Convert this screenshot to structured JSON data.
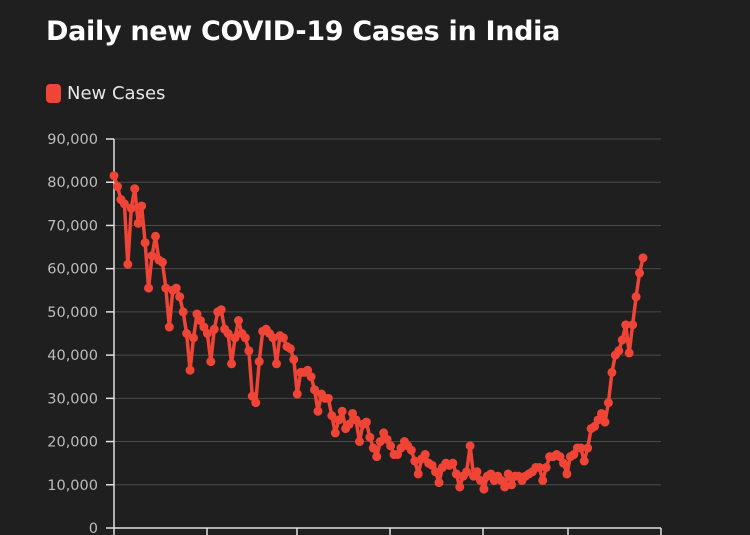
{
  "chart_data": {
    "type": "line",
    "title": "Daily new COVID-19 Cases in India",
    "legend": [
      {
        "name": "New Cases",
        "color": "#f04536"
      }
    ],
    "legend_placement": "top-left",
    "ylim": [
      0,
      90000
    ],
    "yticks": [
      0,
      10000,
      20000,
      30000,
      40000,
      50000,
      60000,
      70000,
      80000,
      90000
    ],
    "ytick_labels": [
      "0",
      "10,000",
      "20,000",
      "30,000",
      "40,000",
      "50,000",
      "60,000",
      "70,000",
      "80,000",
      "90,000"
    ],
    "grid": "horizontal",
    "series": [
      {
        "name": "New Cases",
        "color": "#f04536",
        "values": [
          81500,
          79000,
          76000,
          75000,
          61000,
          74000,
          78500,
          70500,
          74500,
          66000,
          55500,
          63000,
          67500,
          62000,
          61500,
          55500,
          46500,
          55000,
          55500,
          53500,
          50000,
          45000,
          36500,
          44000,
          49500,
          48000,
          46500,
          45000,
          38500,
          46000,
          50000,
          50500,
          46000,
          45000,
          38000,
          44000,
          48000,
          45000,
          44000,
          41000,
          30500,
          29000,
          38500,
          45500,
          46000,
          45000,
          44000,
          38000,
          44500,
          44000,
          42000,
          41500,
          39000,
          31000,
          36000,
          36000,
          36500,
          35000,
          32000,
          27000,
          31000,
          30000,
          30000,
          26000,
          22000,
          25000,
          27000,
          23000,
          24000,
          26500,
          25000,
          20000,
          24000,
          24500,
          21000,
          18500,
          16500,
          20000,
          22000,
          20500,
          19000,
          17000,
          17000,
          18500,
          20000,
          19000,
          18000,
          15500,
          12500,
          16000,
          17000,
          15000,
          14500,
          13000,
          10500,
          14000,
          15000,
          14500,
          15000,
          12500,
          9500,
          12000,
          13000,
          19000,
          12000,
          13000,
          11000,
          9000,
          12000,
          12500,
          11000,
          12000,
          11000,
          9500,
          12500,
          10000,
          12000,
          12000,
          11000,
          12000,
          12500,
          13000,
          14000,
          14000,
          11000,
          14000,
          16500,
          16500,
          17000,
          16500,
          15000,
          12500,
          16500,
          17000,
          18500,
          18500,
          15500,
          18500,
          23000,
          23500,
          25000,
          26500,
          24500,
          29000,
          36000,
          40000,
          41000,
          43500,
          47000,
          40500,
          47000,
          53500,
          59000,
          62500
        ]
      }
    ]
  }
}
